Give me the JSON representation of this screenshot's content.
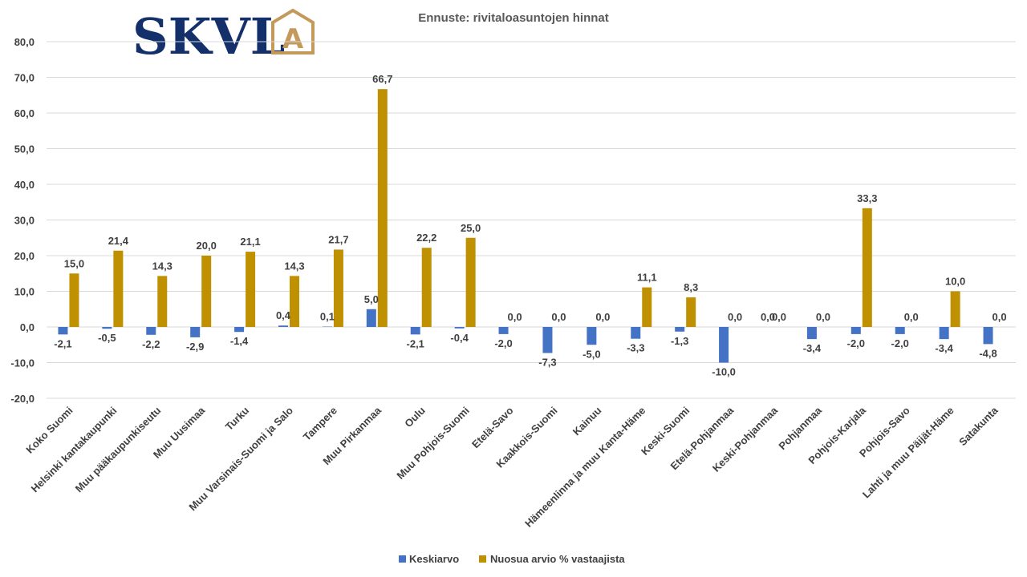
{
  "logo": {
    "text": "SKVL",
    "mark": "A",
    "text_color": "#14306b",
    "mark_color": "#c49a5c"
  },
  "colors": {
    "keskiarvo": "#4472c4",
    "nuosua": "#bf9000"
  },
  "chart_data": {
    "type": "bar",
    "title": "Ennuste: rivitaloasuntojen hinnat",
    "xlabel": "",
    "ylabel": "",
    "ylim": [
      -20,
      80
    ],
    "yticks": [
      "80,0",
      "70,0",
      "60,0",
      "50,0",
      "40,0",
      "30,0",
      "20,0",
      "10,0",
      "0,0",
      "-10,0",
      "-20,0"
    ],
    "ytick_values": [
      80,
      70,
      60,
      50,
      40,
      30,
      20,
      10,
      0,
      -10,
      -20
    ],
    "grid": true,
    "legend_position": "bottom",
    "categories": [
      "Koko Suomi",
      "Helsinki kantakaupunki",
      "Muu pääkaupunkiseutu",
      "Muu Uusimaa",
      "Turku",
      "Muu Varsinais-Suomi ja Salo",
      "Tampere",
      "Muu Pirkanmaa",
      "Oulu",
      "Muu Pohjois-Suomi",
      "Etelä-Savo",
      "Kaakkois-Suomi",
      "Kainuu",
      "Hämeenlinna ja muu Kanta-Häme",
      "Keski-Suomi",
      "Etelä-Pohjanmaa",
      "Keski-Pohjanmaa",
      "Pohjanmaa",
      "Pohjois-Karjala",
      "Pohjois-Savo",
      "Lahti ja muu Päijät-Häme",
      "Satakunta"
    ],
    "series": [
      {
        "name": "Keskiarvo",
        "color": "#4472c4",
        "values": [
          -2.1,
          -0.5,
          -2.2,
          -2.9,
          -1.4,
          0.4,
          0.1,
          5.0,
          -2.1,
          -0.4,
          -2.0,
          -7.3,
          -5.0,
          -3.3,
          -1.3,
          -10.0,
          0.0,
          -3.4,
          -2.0,
          -2.0,
          -3.4,
          -4.8
        ],
        "labels": [
          "-2,1",
          "-0,5",
          "-2,2",
          "-2,9",
          "-1,4",
          "0,4",
          "0,1",
          "5,0",
          "-2,1",
          "-0,4",
          "-2,0",
          "-7,3",
          "-5,0",
          "-3,3",
          "-1,3",
          "-10,0",
          "0,0",
          "-3,4",
          "-2,0",
          "-2,0",
          "-3,4",
          "-4,8"
        ]
      },
      {
        "name": "Nuosua arvio % vastaajista",
        "color": "#bf9000",
        "values": [
          15.0,
          21.4,
          14.3,
          20.0,
          21.1,
          14.3,
          21.7,
          66.7,
          22.2,
          25.0,
          0.0,
          0.0,
          0.0,
          11.1,
          8.3,
          0.0,
          0.0,
          0.0,
          33.3,
          0.0,
          10.0,
          0.0
        ],
        "labels": [
          "15,0",
          "21,4",
          "14,3",
          "20,0",
          "21,1",
          "14,3",
          "21,7",
          "66,7",
          "22,2",
          "25,0",
          "0,0",
          "0,0",
          "0,0",
          "11,1",
          "8,3",
          "0,0",
          "0,0",
          "0,0",
          "33,3",
          "0,0",
          "10,0",
          "0,0"
        ]
      }
    ]
  }
}
